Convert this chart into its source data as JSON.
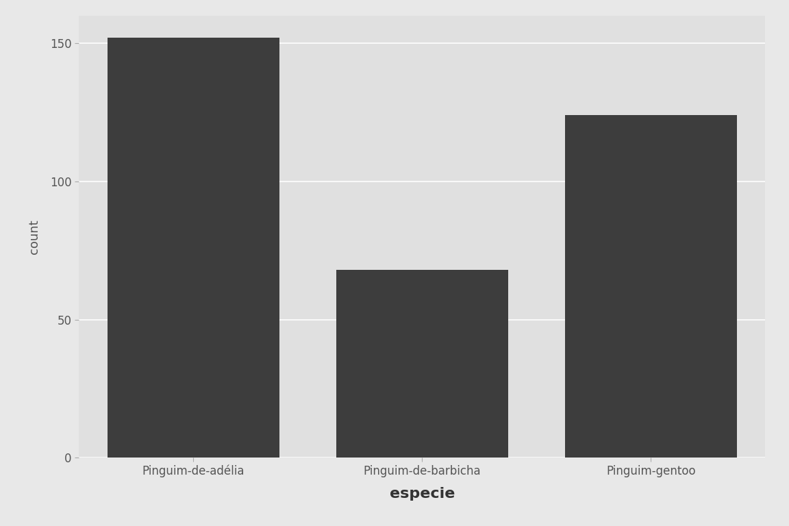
{
  "categories": [
    "Pinguim-de-adélia",
    "Pinguim-de-barbicha",
    "Pinguim-gentoo"
  ],
  "values": [
    152,
    68,
    124
  ],
  "bar_color": "#3d3d3d",
  "xlabel": "especie",
  "ylabel": "count",
  "ylim": [
    0,
    160
  ],
  "yticks": [
    0,
    50,
    100,
    150
  ],
  "figure_background": "#e8e8e8",
  "panel_background": "#e0e0e0",
  "grid_color": "#ffffff",
  "xlabel_fontsize": 16,
  "ylabel_fontsize": 13,
  "tick_fontsize": 12,
  "bar_width": 0.75
}
